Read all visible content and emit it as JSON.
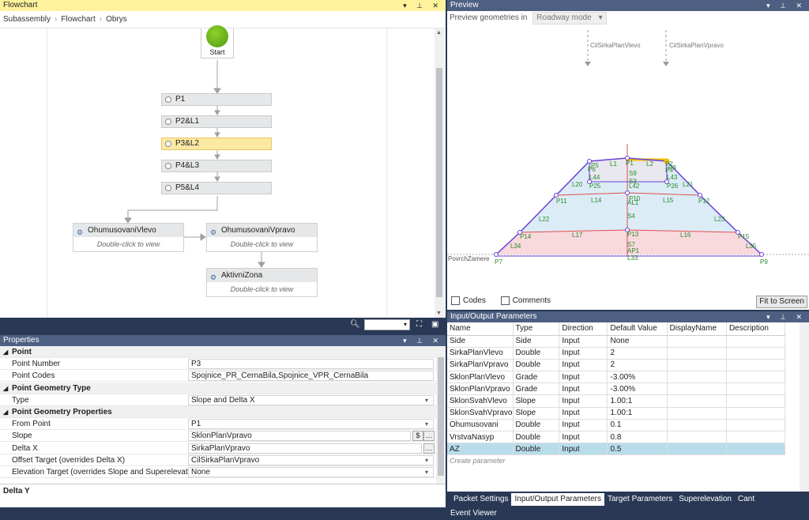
{
  "flowchart": {
    "title": "Flowchart",
    "breadcrumb": [
      "Subassembly",
      "Flowchart",
      "Obrys"
    ],
    "start_label": "Start",
    "points": [
      "P1",
      "P2&L1",
      "P3&L2",
      "P4&L3",
      "P5&L4"
    ],
    "selected_point": "P3&L2",
    "subflows": [
      {
        "name": "OhumusovaniVlevo",
        "hint": "Double-click to view"
      },
      {
        "name": "OhumusovaniVpravo",
        "hint": "Double-click to view"
      },
      {
        "name": "AktivniZona",
        "hint": "Double-click to view"
      }
    ]
  },
  "preview": {
    "title": "Preview",
    "geom_label": "Preview geometries in",
    "mode": "Roadway mode",
    "target_left": "CilSirkaPlanVlevo",
    "target_right": "CilSirkaPlanVpravo",
    "ground_label": "PovrchZamere",
    "codes_label": "Codes",
    "comments_label": "Comments",
    "fit_label": "Fit to Screen",
    "labels": [
      "P1",
      "L1",
      "L2",
      "P2",
      "P3",
      "P6",
      "P5",
      "P4",
      "L43",
      "L44",
      "S9",
      "S3",
      "L42",
      "P25",
      "P26",
      "L20",
      "L21",
      "P10",
      "AL1",
      "P11",
      "P12",
      "L14",
      "L15",
      "S4",
      "L22",
      "L23",
      "P14",
      "P13",
      "P15",
      "L17",
      "L16",
      "L34",
      "L35",
      "S7",
      "AP1",
      "L33",
      "P7",
      "P9"
    ],
    "colors": {
      "outline": "#6b3fd6",
      "fill_blue": "#dcecf6",
      "fill_pink": "#f8d9de",
      "red_line": "#e05050",
      "highlight": "#f0c000"
    }
  },
  "properties": {
    "title": "Properties",
    "rows": [
      {
        "type": "cat",
        "label": "Point"
      },
      {
        "type": "text",
        "label": "Point Number",
        "value": "P3"
      },
      {
        "type": "text",
        "label": "Point Codes",
        "value": "Spojnice_PR_CernaBila,Spojnice_VPR_CernaBila"
      },
      {
        "type": "cat",
        "label": "Point Geometry Type"
      },
      {
        "type": "select",
        "label": "Type",
        "value": "Slope and Delta X"
      },
      {
        "type": "cat",
        "label": "Point Geometry Properties"
      },
      {
        "type": "select",
        "label": "From Point",
        "value": "P1"
      },
      {
        "type": "text",
        "label": "Slope",
        "value": "SklonPlanVpravo"
      },
      {
        "type": "text",
        "label": "Delta X",
        "value": "SirkaPlanVpravo"
      },
      {
        "type": "select",
        "label": "Offset Target (overrides Delta X)",
        "value": "CilSirkaPlanVpravo"
      },
      {
        "type": "select",
        "label": "Elevation Target (overrides Slope and Superelevation)",
        "value": "None"
      }
    ],
    "description_title": "Delta Y"
  },
  "io": {
    "title": "Input/Output Parameters",
    "columns": [
      "Name",
      "Type",
      "Direction",
      "Default Value",
      "DisplayName",
      "Description"
    ],
    "rows": [
      [
        "Side",
        "Side",
        "Input",
        "None"
      ],
      [
        "SirkaPlanVlevo",
        "Double",
        "Input",
        "2"
      ],
      [
        "SirkaPlanVpravo",
        "Double",
        "Input",
        "2"
      ],
      [
        "SklonPlanVlevo",
        "Grade",
        "Input",
        "-3.00%"
      ],
      [
        "SklonPlanVpravo",
        "Grade",
        "Input",
        "-3.00%"
      ],
      [
        "SklonSvahVlevo",
        "Slope",
        "Input",
        "1.00:1"
      ],
      [
        "SklonSvahVpravo",
        "Slope",
        "Input",
        "1.00:1"
      ],
      [
        "Ohumusovani",
        "Double",
        "Input",
        "0.1"
      ],
      [
        "VrstvaNasyp",
        "Double",
        "Input",
        "0.8"
      ],
      [
        "AZ",
        "Double",
        "Input",
        "0.5"
      ]
    ],
    "selected_row": 9,
    "create_label": "Create parameter"
  },
  "tabs": [
    "Packet Settings",
    "Input/Output Parameters",
    "Target Parameters",
    "Superelevation",
    "Cant",
    "Event Viewer"
  ],
  "active_tab": "Input/Output Parameters"
}
